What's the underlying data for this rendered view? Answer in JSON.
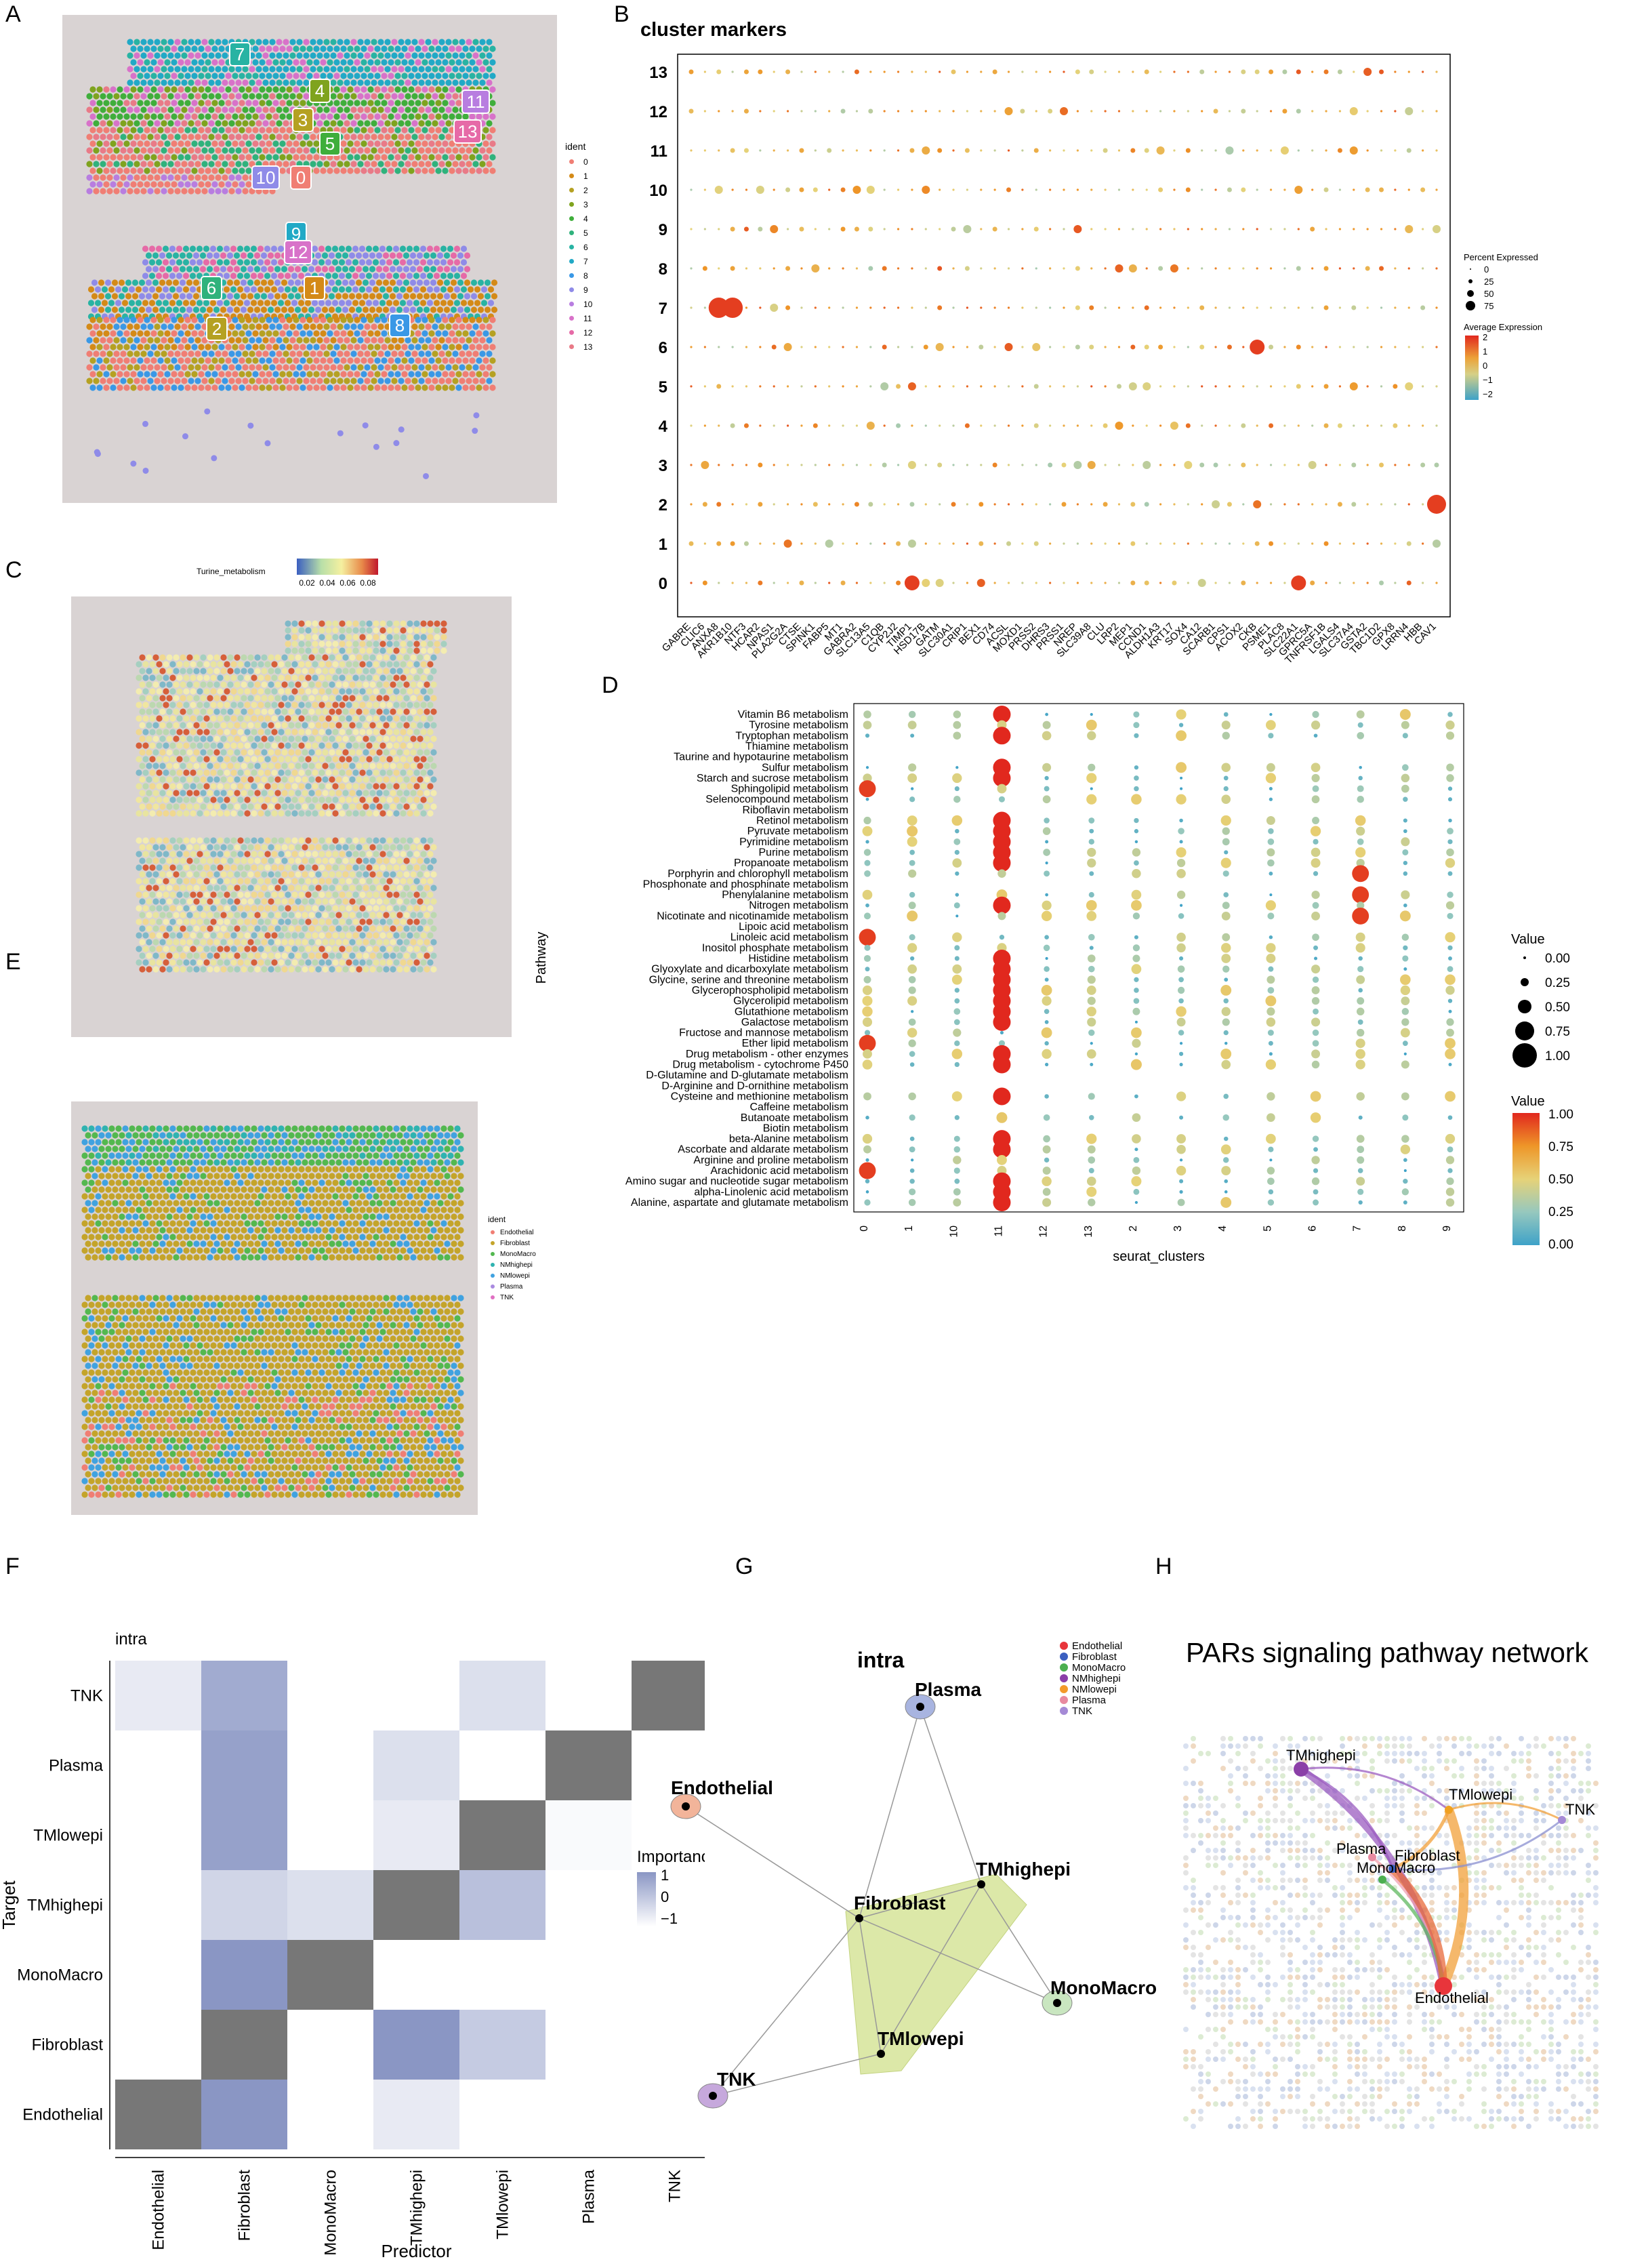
{
  "panels": {
    "A": "A",
    "B": "B",
    "C": "C",
    "D": "D",
    "E": "E",
    "F": "F",
    "G": "G",
    "H": "H"
  },
  "panelA": {
    "legend_title": "ident",
    "legend_items": [
      "0",
      "1",
      "2",
      "3",
      "4",
      "5",
      "6",
      "7",
      "8",
      "9",
      "10",
      "11",
      "12",
      "13"
    ],
    "legend_colors": [
      "#f07e74",
      "#d48a17",
      "#b5a122",
      "#7fa31e",
      "#3fae3b",
      "#2fb27c",
      "#28b3a3",
      "#21a9c6",
      "#3a98e6",
      "#8f8be8",
      "#b87de0",
      "#d872c9",
      "#e66aa7",
      "#e97a87"
    ],
    "labels": [
      {
        "text": "7",
        "c": "#28b3a3"
      },
      {
        "text": "4",
        "c": "#7fa31e"
      },
      {
        "text": "11",
        "c": "#b87de0"
      },
      {
        "text": "3",
        "c": "#b5a122"
      },
      {
        "text": "5",
        "c": "#3fae3b"
      },
      {
        "text": "13",
        "c": "#e66aa7"
      },
      {
        "text": "10",
        "c": "#8f8be8"
      },
      {
        "text": "0",
        "c": "#f07e74"
      },
      {
        "text": "9",
        "c": "#21a9c6"
      },
      {
        "text": "12",
        "c": "#d872c9"
      },
      {
        "text": "6",
        "c": "#2fb27c"
      },
      {
        "text": "1",
        "c": "#d48a17"
      },
      {
        "text": "2",
        "c": "#b5a122"
      },
      {
        "text": "8",
        "c": "#3a98e6"
      }
    ]
  },
  "panelB": {
    "title": "cluster markers",
    "clusters": [
      "13",
      "12",
      "11",
      "10",
      "9",
      "8",
      "7",
      "6",
      "5",
      "4",
      "3",
      "2",
      "1",
      "0"
    ],
    "genes": [
      "GABRE",
      "CLIC6",
      "ANXA8",
      "AKR1B10",
      "NTF3",
      "HCAR2",
      "NPAS1",
      "PLA2G2A",
      "CTSE",
      "SPINK1",
      "FABP5",
      "MT1",
      "GABRA2",
      "SLC13A5",
      "C1QB",
      "CYP2J2",
      "TIMP1",
      "HSD17B",
      "GATM",
      "SLC30A1",
      "CRIP1",
      "BEX1",
      "CD74",
      "ACSL",
      "MOXD1",
      "PRSS2",
      "DHRS3",
      "PRSS1",
      "NREP",
      "SLC39A8",
      "CLU",
      "LRP2",
      "MEP1",
      "CCND1",
      "ALDH1A3",
      "KRT17",
      "SOX4",
      "CA12",
      "SCARB1",
      "CPS1",
      "ACOX2",
      "CKB",
      "PSME1",
      "PLAC8",
      "SLC22A1",
      "GPRC5A",
      "TNFRSF1B",
      "LGALS4",
      "SLC37A4",
      "GSTA2",
      "TBC1D2",
      "GPX8",
      "LRRN4",
      "HBB",
      "CAV1"
    ],
    "legend_size_title": "Percent Expressed",
    "legend_size_items": [
      "0",
      "25",
      "50",
      "75"
    ],
    "legend_color_title": "Average Expression",
    "legend_color_ticks": [
      "2",
      "1",
      "0",
      "−1",
      "−2"
    ]
  },
  "panelC": {
    "legend_title": "Turine_metabolism",
    "legend_ticks": [
      "0.02",
      "0.04",
      "0.06",
      "0.08"
    ]
  },
  "panelE": {
    "legend_title": "ident",
    "legend_items": [
      "Endothelial",
      "Fibroblast",
      "MonoMacro",
      "NMhighepi",
      "NMlowepi",
      "Plasma",
      "TNK"
    ],
    "legend_colors": [
      "#f07e74",
      "#c4a42a",
      "#53b84f",
      "#2fb3b0",
      "#40a2e0",
      "#a98ae0",
      "#e070c2"
    ]
  },
  "chart_data": [
    {
      "type": "scatter",
      "title": "",
      "xlabel": "seurat_clusters",
      "ylabel": "Pathway",
      "x": [
        "0",
        "1",
        "10",
        "11",
        "12",
        "13",
        "2",
        "3",
        "4",
        "5",
        "6",
        "7",
        "8",
        "9"
      ],
      "pathways": [
        "Vitamin B6 metabolism",
        "Tyrosine metabolism",
        "Tryptophan metabolism",
        "Thiamine metabolism",
        "Taurine and hypotaurine metabolism",
        "Sulfur metabolism",
        "Starch and sucrose metabolism",
        "Sphingolipid metabolism",
        "Selenocompound metabolism",
        "Riboflavin metabolism",
        "Retinol metabolism",
        "Pyruvate metabolism",
        "Pyrimidine metabolism",
        "Purine metabolism",
        "Propanoate metabolism",
        "Porphyrin and chlorophyll metabolism",
        "Phosphonate and phosphinate metabolism",
        "Phenylalanine metabolism",
        "Nitrogen metabolism",
        "Nicotinate and nicotinamide metabolism",
        "Lipoic acid metabolism",
        "Linoleic acid metabolism",
        "Inositol phosphate metabolism",
        "Histidine metabolism",
        "Glyoxylate and dicarboxylate metabolism",
        "Glycine, serine and threonine metabolism",
        "Glycerophospholipid metabolism",
        "Glycerolipid metabolism",
        "Glutathione metabolism",
        "Galactose metabolism",
        "Fructose and mannose metabolism",
        "Ether lipid metabolism",
        "Drug metabolism - other enzymes",
        "Drug metabolism - cytochrome P450",
        "D-Glutamine and D-glutamate metabolism",
        "D-Arginine and D-ornithine metabolism",
        "Cysteine and methionine metabolism",
        "Caffeine metabolism",
        "Butanoate metabolism",
        "Biotin metabolism",
        "beta-Alanine metabolism",
        "Ascorbate and aldarate metabolism",
        "Arginine and proline metabolism",
        "Arachidonic acid metabolism",
        "Amino sugar and nucleotide sugar metabolism",
        "alpha-Linolenic acid metabolism",
        "Alanine, aspartate and glutamate metabolism"
      ],
      "legend_size_title": "Value",
      "legend_size_ticks": [
        "0.00",
        "0.25",
        "0.50",
        "0.75",
        "1.00"
      ],
      "legend_color_title": "Value",
      "legend_color_ticks": [
        "1.00",
        "0.75",
        "0.50",
        "0.25",
        "0.00"
      ],
      "highlights": {
        "col_11_high": [
          "Vitamin B6 metabolism",
          "Tryptophan metabolism",
          "Sulfur metabolism",
          "Starch and sucrose metabolism",
          "Retinol metabolism",
          "Pyruvate metabolism",
          "Pyrimidine metabolism",
          "Purine metabolism",
          "Propanoate metabolism",
          "Nitrogen metabolism",
          "Histidine metabolism",
          "Glyoxylate and dicarboxylate metabolism",
          "Glycine, serine and threonine metabolism",
          "Glycerophospholipid metabolism",
          "Glycerolipid metabolism",
          "Glutathione metabolism",
          "Galactose metabolism",
          "Drug metabolism - other enzymes",
          "Drug metabolism - cytochrome P450",
          "Cysteine and methionine metabolism",
          "beta-Alanine metabolism",
          "Ascorbate and aldarate metabolism",
          "Amino sugar and nucleotide sugar metabolism",
          "alpha-Linolenic acid metabolism",
          "Alanine, aspartate and glutamate metabolism"
        ],
        "col_7_high": [
          "Porphyrin and chlorophyll metabolism",
          "Phenylalanine metabolism",
          "Nicotinate and nicotinamide metabolism"
        ],
        "col_0_high": [
          "Sphingolipid metabolism",
          "Linoleic acid metabolism",
          "Ether lipid metabolism",
          "Arachidonic acid metabolism"
        ]
      }
    },
    {
      "type": "heatmap",
      "title": "intra",
      "xlabel": "Predictor",
      "ylabel": "Target",
      "x": [
        "Endothelial",
        "Fibroblast",
        "MonoMacro",
        "TMhighepi",
        "TMlowepi",
        "Plasma",
        "TNK"
      ],
      "y": [
        "TNK",
        "Plasma",
        "TMlowepi",
        "TMhighepi",
        "MonoMacro",
        "Fibroblast",
        "Endothelial"
      ],
      "values": [
        [
          0.2,
          0.8,
          null,
          0,
          0.3,
          0,
          "diag"
        ],
        [
          0,
          0.9,
          null,
          0.3,
          0,
          "diag",
          null
        ],
        [
          0,
          0.9,
          null,
          0.2,
          "diag",
          0.05,
          null
        ],
        [
          0,
          0.4,
          0.3,
          "diag",
          0.6,
          null,
          null
        ],
        [
          0,
          1.0,
          "diag",
          null,
          null,
          null,
          null
        ],
        [
          0,
          "diag",
          null,
          1.0,
          0.5,
          null,
          null
        ],
        [
          "diag",
          1.0,
          null,
          0.2,
          null,
          null,
          null
        ]
      ],
      "legend_title": "Importance",
      "legend_ticks": [
        "1",
        "0",
        "−1"
      ]
    }
  ],
  "panelG": {
    "title": "intra",
    "nodes": [
      "Plasma",
      "Endothelial",
      "TMhighepi",
      "Fibroblast",
      "MonoMacro",
      "TMlowepi",
      "TNK"
    ],
    "legend": [
      "Endothelial",
      "Fibroblast",
      "MonoMacro",
      "NMhighepi",
      "NMlowepi",
      "Plasma",
      "TNK"
    ],
    "legend_colors": [
      "#e8353b",
      "#3b5fc0",
      "#4caf50",
      "#8b3fa8",
      "#f39a2b",
      "#e88aa0",
      "#a58ad6"
    ]
  },
  "panelH": {
    "title": "PARs signaling pathway network",
    "nodes": [
      "TMhighepi",
      "TMlowepi",
      "TNK",
      "Plasma",
      "Fibroblast",
      "MonoMacro",
      "Endothelial"
    ]
  }
}
